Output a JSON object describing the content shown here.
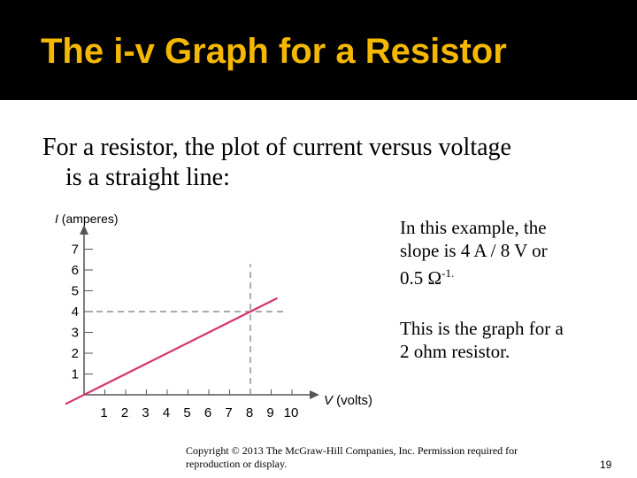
{
  "slide": {
    "title": "The i-v Graph for a Resistor",
    "intro_line1": "For a resistor, the plot of current versus voltage",
    "intro_line2": "is a straight line:",
    "note1_line1": "In this example, the",
    "note1_line2": "slope is 4 A / 8 V or",
    "note1_line3": "0.5 Ω",
    "note1_sup": "-1.",
    "note2_line1": "This is the graph for a",
    "note2_line2": "2 ohm resistor.",
    "footer_line1": "Copyright © 2013 The McGraw-Hill Companies, Inc. Permission required for",
    "footer_line2": "reproduction or display.",
    "page_number": "19"
  },
  "chart_data": {
    "type": "line",
    "xlabel_italic": "V",
    "xlabel_rest": " (volts)",
    "ylabel_italic": "I",
    "ylabel_rest": " (amperes)",
    "x_ticks": [
      1,
      2,
      3,
      4,
      5,
      6,
      7,
      8,
      9,
      10
    ],
    "y_ticks": [
      1,
      2,
      3,
      4,
      5,
      6,
      7
    ],
    "series": [
      {
        "x": [
          0,
          8
        ],
        "y": [
          0,
          4
        ],
        "color": "#d6336c"
      }
    ],
    "annotation": {
      "x": 8,
      "y": 4,
      "style": "dashed"
    },
    "line_color": "#d6336c",
    "axis_color": "#555555"
  }
}
